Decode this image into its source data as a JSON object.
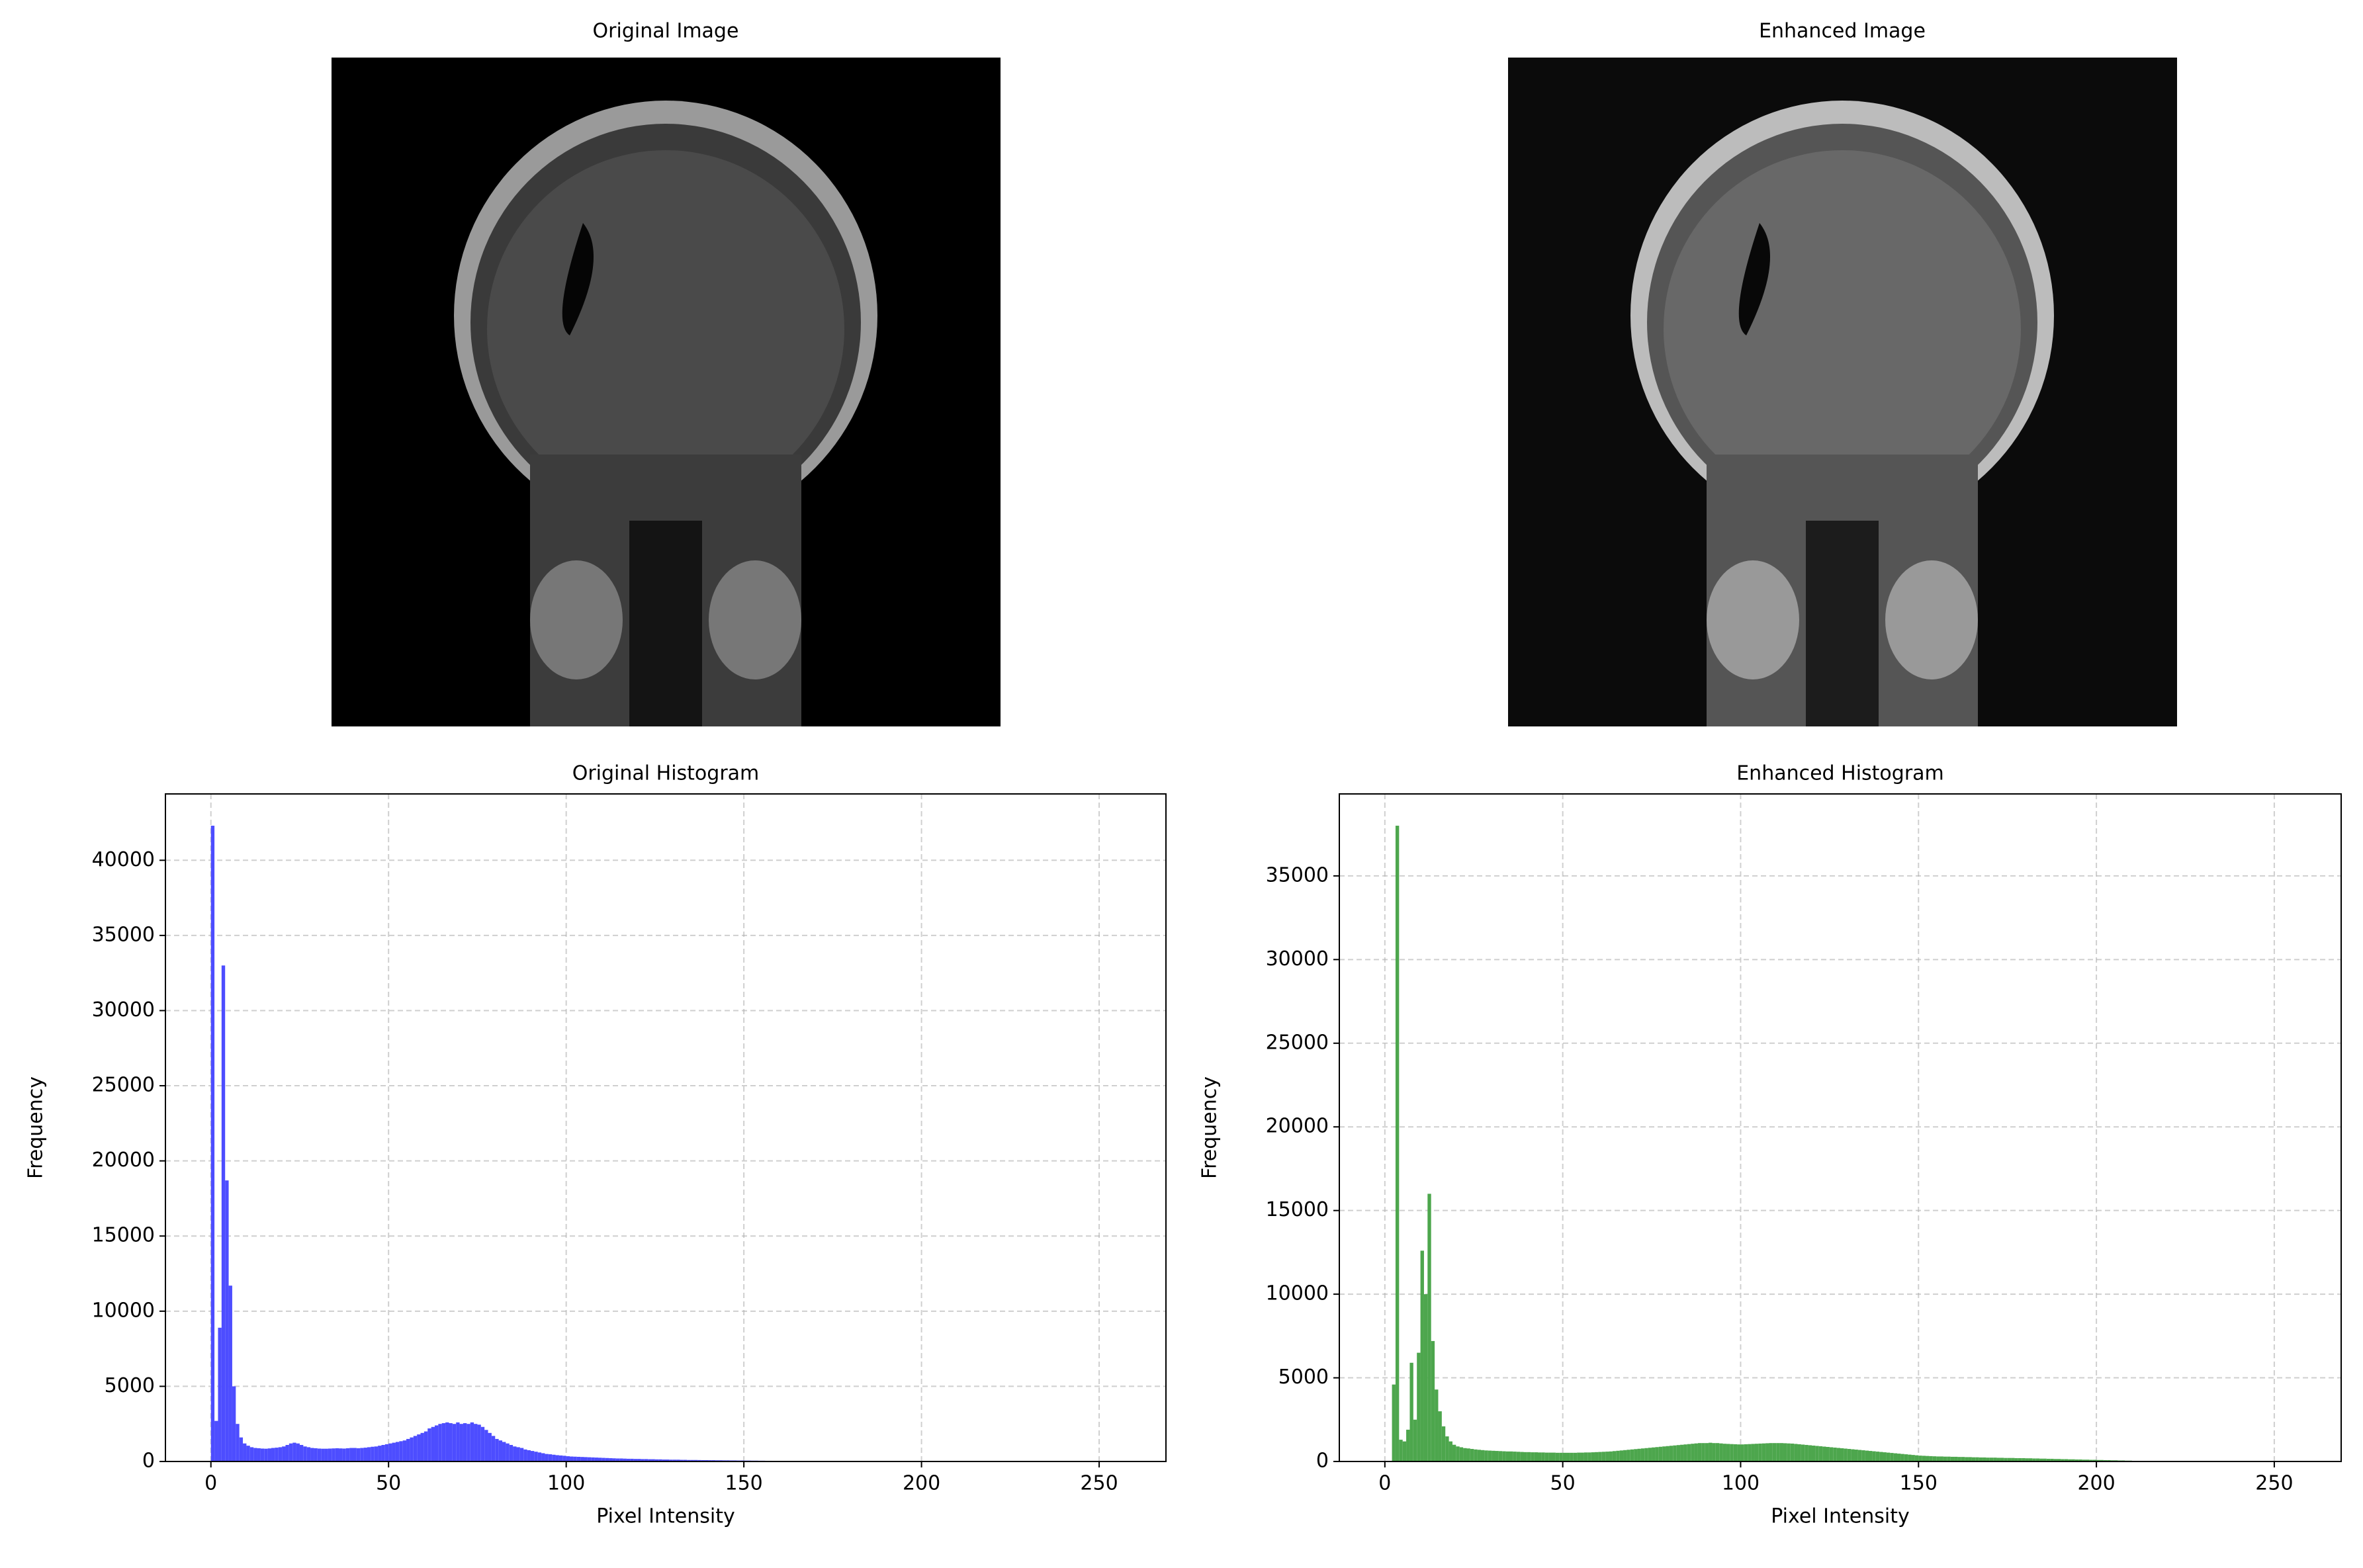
{
  "images": [
    {
      "title": "Original Image"
    },
    {
      "title": "Enhanced Image"
    }
  ],
  "chart_data": [
    {
      "type": "histogram",
      "title": "Original Histogram",
      "xlabel": "Pixel Intensity",
      "ylabel": "Frequency",
      "color": "#4d4dff",
      "grid": true,
      "xlim": [
        -12.8,
        268.8
      ],
      "ylim": [
        0,
        44415
      ],
      "xticks": [
        0,
        50,
        100,
        150,
        200,
        250
      ],
      "yticks": [
        0,
        5000,
        10000,
        15000,
        20000,
        25000,
        30000,
        35000,
        40000
      ],
      "bins": [
        0,
        1,
        2,
        3,
        4,
        5,
        6,
        7,
        8,
        9,
        10,
        11,
        12,
        13,
        14,
        15,
        16,
        17,
        18,
        19,
        20,
        21,
        22,
        23,
        24,
        25,
        26,
        27,
        28,
        29,
        30,
        31,
        32,
        33,
        34,
        35,
        36,
        37,
        38,
        39,
        40,
        41,
        42,
        43,
        44,
        45,
        46,
        47,
        48,
        49,
        50,
        51,
        52,
        53,
        54,
        55,
        56,
        57,
        58,
        59,
        60,
        61,
        62,
        63,
        64,
        65,
        66,
        67,
        68,
        69,
        70,
        71,
        72,
        73,
        74,
        75,
        76,
        77,
        78,
        79,
        80,
        81,
        82,
        83,
        84,
        85,
        86,
        87,
        88,
        89,
        90,
        91,
        92,
        93,
        94,
        95,
        96,
        97,
        98,
        99,
        100,
        101,
        102,
        103,
        104,
        105,
        106,
        107,
        108,
        109,
        110,
        111,
        112,
        113,
        114,
        115,
        116,
        117,
        118,
        119,
        120,
        121,
        122,
        123,
        124,
        125,
        126,
        127,
        128,
        129,
        130,
        131,
        132,
        133,
        134,
        135,
        136,
        137,
        138,
        139,
        140,
        141,
        142,
        143,
        144,
        145,
        146,
        147,
        148,
        149,
        150,
        151,
        152,
        153,
        154,
        155,
        156,
        157,
        158,
        159,
        160,
        161,
        162,
        163,
        164,
        165,
        166,
        167,
        168,
        169,
        170,
        171,
        172,
        173,
        174,
        175,
        176,
        177,
        178,
        179,
        180,
        181,
        182,
        183,
        184,
        185,
        186,
        187,
        188,
        189,
        190,
        191,
        192,
        193,
        194,
        195,
        196,
        197,
        198,
        199,
        200,
        201,
        202,
        203,
        204,
        205,
        206,
        207,
        208,
        209,
        210,
        211,
        212,
        213,
        214,
        215,
        216,
        217,
        218,
        219,
        220,
        221,
        222,
        223,
        224,
        225,
        226,
        227,
        228,
        229,
        230,
        231,
        232,
        233,
        234,
        235,
        236,
        237,
        238,
        239,
        240,
        241,
        242,
        243,
        244,
        245,
        246,
        247,
        248,
        249,
        250,
        251,
        252,
        253,
        254,
        255,
        256
      ],
      "values": [
        42300,
        2700,
        8900,
        33000,
        18700,
        11700,
        5000,
        2500,
        1600,
        1200,
        1050,
        950,
        900,
        880,
        860,
        850,
        870,
        900,
        920,
        950,
        1000,
        1100,
        1200,
        1250,
        1200,
        1100,
        1000,
        950,
        900,
        880,
        860,
        850,
        850,
        860,
        870,
        880,
        870,
        860,
        880,
        900,
        900,
        880,
        900,
        920,
        950,
        980,
        1000,
        1050,
        1100,
        1150,
        1200,
        1250,
        1300,
        1350,
        1400,
        1500,
        1600,
        1700,
        1800,
        1900,
        2000,
        2200,
        2300,
        2400,
        2500,
        2550,
        2600,
        2550,
        2500,
        2600,
        2500,
        2550,
        2500,
        2600,
        2500,
        2450,
        2300,
        2100,
        1900,
        1700,
        1500,
        1400,
        1300,
        1200,
        1100,
        1000,
        950,
        900,
        800,
        750,
        700,
        650,
        600,
        550,
        500,
        480,
        450,
        420,
        400,
        380,
        350,
        330,
        320,
        310,
        300,
        290,
        280,
        270,
        260,
        250,
        240,
        230,
        220,
        210,
        200,
        200,
        190,
        180,
        180,
        170,
        170,
        160,
        160,
        150,
        150,
        140,
        140,
        130,
        130,
        120,
        120,
        120,
        110,
        110,
        100,
        100,
        100,
        95,
        90,
        90,
        85,
        85,
        80,
        80,
        75,
        75,
        70,
        70,
        65,
        65,
        60,
        60,
        55,
        55,
        50,
        50,
        45,
        45,
        40,
        40,
        35,
        35,
        30,
        30,
        25,
        25,
        20,
        20,
        20,
        15,
        15,
        10,
        10,
        10,
        8,
        8,
        6,
        6,
        5,
        5,
        4,
        4,
        3,
        3,
        3,
        2,
        2,
        2,
        2,
        2,
        1,
        1,
        1,
        1,
        1,
        1,
        1,
        1,
        1,
        1,
        0,
        0,
        0,
        0,
        0,
        0,
        0,
        0,
        0,
        0,
        0,
        0,
        0,
        0,
        0,
        0,
        0,
        0,
        0,
        0,
        0,
        0,
        0,
        0,
        0,
        0,
        0,
        0,
        0,
        0,
        0,
        0,
        0,
        0,
        0,
        0,
        0,
        0,
        0,
        0,
        0,
        0,
        0,
        0,
        0,
        0,
        0,
        0,
        0,
        0,
        0,
        0,
        0,
        0,
        0,
        0
      ]
    },
    {
      "type": "histogram",
      "title": "Enhanced Histogram",
      "xlabel": "Pixel Intensity",
      "ylabel": "Frequency",
      "color": "#4da64d",
      "grid": true,
      "xlim": [
        -12.8,
        268.8
      ],
      "ylim": [
        0,
        39900
      ],
      "xticks": [
        0,
        50,
        100,
        150,
        200,
        250
      ],
      "yticks": [
        0,
        5000,
        10000,
        15000,
        20000,
        25000,
        30000,
        35000
      ],
      "bins": [
        0,
        1,
        2,
        3,
        4,
        5,
        6,
        7,
        8,
        9,
        10,
        11,
        12,
        13,
        14,
        15,
        16,
        17,
        18,
        19,
        20,
        21,
        22,
        23,
        24,
        25,
        26,
        27,
        28,
        29,
        30,
        31,
        32,
        33,
        34,
        35,
        36,
        37,
        38,
        39,
        40,
        41,
        42,
        43,
        44,
        45,
        46,
        47,
        48,
        49,
        50,
        51,
        52,
        53,
        54,
        55,
        56,
        57,
        58,
        59,
        60,
        61,
        62,
        63,
        64,
        65,
        66,
        67,
        68,
        69,
        70,
        71,
        72,
        73,
        74,
        75,
        76,
        77,
        78,
        79,
        80,
        81,
        82,
        83,
        84,
        85,
        86,
        87,
        88,
        89,
        90,
        91,
        92,
        93,
        94,
        95,
        96,
        97,
        98,
        99,
        100,
        101,
        102,
        103,
        104,
        105,
        106,
        107,
        108,
        109,
        110,
        111,
        112,
        113,
        114,
        115,
        116,
        117,
        118,
        119,
        120,
        121,
        122,
        123,
        124,
        125,
        126,
        127,
        128,
        129,
        130,
        131,
        132,
        133,
        134,
        135,
        136,
        137,
        138,
        139,
        140,
        141,
        142,
        143,
        144,
        145,
        146,
        147,
        148,
        149,
        150,
        151,
        152,
        153,
        154,
        155,
        156,
        157,
        158,
        159,
        160,
        161,
        162,
        163,
        164,
        165,
        166,
        167,
        168,
        169,
        170,
        171,
        172,
        173,
        174,
        175,
        176,
        177,
        178,
        179,
        180,
        181,
        182,
        183,
        184,
        185,
        186,
        187,
        188,
        189,
        190,
        191,
        192,
        193,
        194,
        195,
        196,
        197,
        198,
        199,
        200,
        201,
        202,
        203,
        204,
        205,
        206,
        207,
        208,
        209,
        210,
        211,
        212,
        213,
        214,
        215,
        216,
        217,
        218,
        219,
        220,
        221,
        222,
        223,
        224,
        225,
        226,
        227,
        228,
        229,
        230,
        231,
        232,
        233,
        234,
        235,
        236,
        237,
        238,
        239,
        240,
        241,
        242,
        243,
        244,
        245,
        246,
        247,
        248,
        249,
        250,
        251,
        252,
        253,
        254,
        255,
        256
      ],
      "values": [
        0,
        0,
        4600,
        38000,
        1300,
        1200,
        1900,
        5900,
        2500,
        6500,
        12600,
        10000,
        16000,
        7200,
        4300,
        3000,
        2100,
        1500,
        1200,
        1000,
        900,
        850,
        800,
        780,
        750,
        720,
        700,
        680,
        660,
        650,
        640,
        630,
        620,
        610,
        600,
        600,
        590,
        580,
        570,
        560,
        560,
        550,
        550,
        540,
        540,
        530,
        530,
        530,
        520,
        520,
        520,
        520,
        520,
        520,
        530,
        530,
        540,
        540,
        550,
        560,
        570,
        580,
        590,
        600,
        620,
        640,
        660,
        680,
        700,
        720,
        740,
        760,
        780,
        800,
        820,
        840,
        860,
        880,
        900,
        920,
        940,
        960,
        980,
        1000,
        1020,
        1040,
        1060,
        1080,
        1100,
        1100,
        1100,
        1120,
        1100,
        1100,
        1080,
        1060,
        1050,
        1040,
        1030,
        1020,
        1020,
        1030,
        1040,
        1050,
        1060,
        1070,
        1080,
        1090,
        1100,
        1100,
        1100,
        1100,
        1090,
        1080,
        1070,
        1050,
        1030,
        1010,
        990,
        970,
        950,
        930,
        910,
        890,
        870,
        850,
        830,
        810,
        790,
        770,
        750,
        730,
        710,
        690,
        670,
        650,
        630,
        610,
        590,
        570,
        550,
        530,
        510,
        490,
        470,
        450,
        430,
        410,
        390,
        370,
        350,
        340,
        330,
        320,
        310,
        300,
        300,
        290,
        290,
        280,
        280,
        270,
        270,
        260,
        260,
        250,
        250,
        240,
        240,
        230,
        230,
        230,
        220,
        220,
        210,
        210,
        210,
        200,
        200,
        200,
        190,
        190,
        180,
        180,
        170,
        170,
        160,
        160,
        150,
        150,
        140,
        140,
        130,
        130,
        120,
        120,
        110,
        110,
        100,
        100,
        90,
        90,
        80,
        80,
        70,
        70,
        60,
        60,
        50,
        50,
        40,
        40,
        30,
        30,
        20,
        20,
        15,
        15,
        10,
        10,
        5,
        5,
        4,
        4,
        3,
        3,
        2,
        2,
        1,
        1,
        0,
        0,
        0,
        0,
        0,
        0,
        0,
        0,
        0,
        0,
        0,
        0,
        0,
        0,
        0,
        0,
        0,
        0,
        0,
        0,
        0,
        0,
        0,
        0,
        0,
        0
      ]
    }
  ]
}
